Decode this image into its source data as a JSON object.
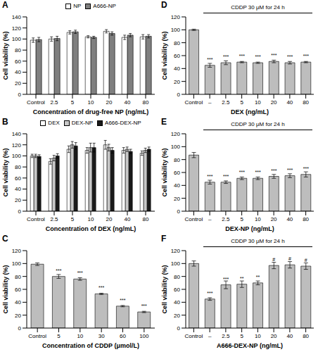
{
  "chart_data": [
    {
      "type": "bar",
      "title": "A",
      "categories": [
        "Control",
        "2.5",
        "5",
        "10",
        "20",
        "40",
        "80"
      ],
      "series": [
        {
          "name": "NP",
          "color": "#ffffff",
          "values": [
            98,
            100,
            112,
            104,
            114,
            103,
            104
          ],
          "errors": [
            4,
            4,
            3,
            2,
            3,
            4,
            4
          ]
        },
        {
          "name": "A666-NP",
          "color": "#7f7f7f",
          "values": [
            99,
            101,
            113,
            103,
            110,
            107,
            105
          ],
          "errors": [
            4,
            4,
            3,
            2,
            3,
            3,
            3
          ]
        }
      ],
      "x_label": "Concentration of drug-free NP (ng/mL)",
      "y_label": "Cell viability (%)",
      "ylim": [
        0,
        140
      ],
      "yticks": [
        0,
        20,
        40,
        60,
        80,
        100,
        120,
        140
      ],
      "legend": "top"
    },
    {
      "type": "bar",
      "title": "B",
      "categories": [
        "Control",
        "2.5",
        "5",
        "10",
        "20",
        "40",
        "80"
      ],
      "series": [
        {
          "name": "DEX",
          "color": "#ffffff",
          "values": [
            100,
            90,
            112,
            110,
            120,
            110,
            105
          ],
          "errors": [
            3,
            5,
            6,
            5,
            8,
            5,
            4
          ]
        },
        {
          "name": "DEX-NP",
          "color": "#c8c8c8",
          "values": [
            100,
            96,
            120,
            115,
            115,
            112,
            110
          ],
          "errors": [
            3,
            5,
            6,
            8,
            6,
            4,
            4
          ]
        },
        {
          "name": "A666-DEX-NP",
          "color": "#1a1a1a",
          "values": [
            99,
            100,
            118,
            115,
            110,
            108,
            112
          ],
          "errors": [
            3,
            4,
            6,
            8,
            5,
            4,
            4
          ]
        }
      ],
      "x_label": "Concentration of DEX (ng/mL)",
      "y_label": "Cell viability (%)",
      "ylim": [
        0,
        140
      ],
      "yticks": [
        0,
        20,
        40,
        60,
        80,
        100,
        120,
        140
      ],
      "legend": "top"
    },
    {
      "type": "bar",
      "title": "C",
      "categories": [
        "Control",
        "5",
        "10",
        "30",
        "60",
        "100"
      ],
      "values": [
        99,
        80,
        76,
        53,
        34,
        25
      ],
      "errors": [
        2,
        3,
        2,
        1,
        1,
        1
      ],
      "significance": [
        null,
        "***",
        "***",
        "***",
        "***",
        "***"
      ],
      "color": "#bdbdbd",
      "x_label": "Concentration of CDDP (μmol/L)",
      "y_label": "Cell viability (%)",
      "ylim": [
        0,
        120
      ],
      "yticks": [
        0,
        20,
        40,
        60,
        80,
        100,
        120
      ]
    },
    {
      "type": "bar",
      "title": "D",
      "categories": [
        "Control",
        "–",
        "2.5",
        "5",
        "10",
        "20",
        "40",
        "80"
      ],
      "values": [
        100,
        45,
        49,
        50,
        49,
        51,
        49,
        50
      ],
      "errors": [
        1,
        3,
        3,
        1,
        1,
        2,
        2,
        1
      ],
      "significance": [
        null,
        "***",
        "***",
        "***",
        "***",
        "***",
        "***",
        "***"
      ],
      "color": "#bdbdbd",
      "annotation": "CDDP 30 μM for 24 h",
      "x_label": "DEX (ng/mL)",
      "y_label": "Cell viability (%)",
      "ylim": [
        0,
        120
      ],
      "yticks": [
        0,
        20,
        40,
        60,
        80,
        100,
        120
      ]
    },
    {
      "type": "bar",
      "title": "E",
      "categories": [
        "Control",
        "–",
        "2.5",
        "5",
        "10",
        "20",
        "40",
        "80"
      ],
      "values": [
        87,
        45,
        45,
        51,
        51,
        54,
        55,
        57
      ],
      "errors": [
        4,
        3,
        2,
        2,
        2,
        3,
        3,
        4
      ],
      "significance": [
        null,
        "***",
        "***",
        "***",
        "***",
        "***",
        "***",
        "***"
      ],
      "color": "#bdbdbd",
      "annotation": "CDDP 30 μM for 24 h",
      "x_label": "DEX-NP (ng/mL)",
      "y_label": "Cell viability (%)",
      "ylim": [
        0,
        120
      ],
      "yticks": [
        0,
        20,
        40,
        60,
        80,
        100,
        120
      ]
    },
    {
      "type": "bar",
      "title": "F",
      "categories": [
        "Control",
        "–",
        "2.5",
        "5",
        "10",
        "20",
        "40",
        "80"
      ],
      "values": [
        100,
        45,
        67,
        68,
        70,
        97,
        98,
        96
      ],
      "errors": [
        4,
        2,
        6,
        5,
        3,
        5,
        5,
        5
      ],
      "significance": [
        null,
        "***",
        "***",
        "**",
        "**",
        "#",
        "#",
        "#"
      ],
      "color": "#bdbdbd",
      "annotation": "CDDP 30 μM for 24 h",
      "x_label": "A666-DEX-NP (ng/mL)",
      "y_label": "Cell viability (%)",
      "ylim": [
        0,
        120
      ],
      "yticks": [
        0,
        20,
        40,
        60,
        80,
        100,
        120
      ]
    }
  ]
}
